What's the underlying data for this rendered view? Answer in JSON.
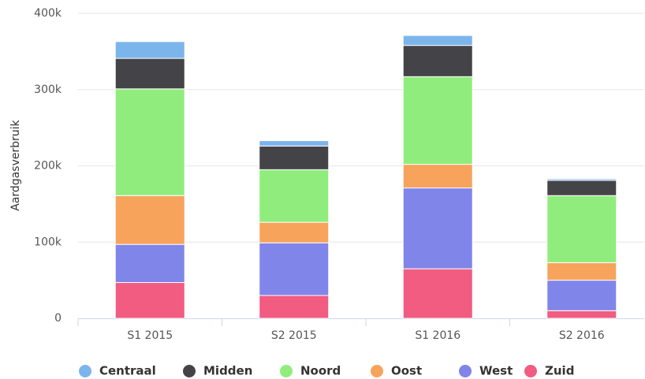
{
  "chart_data": {
    "type": "stacked_bar",
    "y_label": "Aardgasverbruik",
    "categories": [
      "S1 2015",
      "S2 2015",
      "S1 2016",
      "S2 2016"
    ],
    "series": [
      {
        "name": "Zuid",
        "color": "#f15c80",
        "values": [
          47000,
          30000,
          65000,
          10000
        ]
      },
      {
        "name": "West",
        "color": "#8085e9",
        "values": [
          50000,
          69000,
          106000,
          40000
        ]
      },
      {
        "name": "Oost",
        "color": "#f7a35c",
        "values": [
          64000,
          27000,
          31000,
          23000
        ]
      },
      {
        "name": "Noord",
        "color": "#90ed7d",
        "values": [
          140000,
          69000,
          115000,
          88000
        ]
      },
      {
        "name": "Midden",
        "color": "#434348",
        "values": [
          40000,
          31000,
          41000,
          20000
        ]
      },
      {
        "name": "Centraal",
        "color": "#7cb5ec",
        "values": [
          22000,
          7000,
          13000,
          2000
        ]
      }
    ],
    "legend_order": [
      "Centraal",
      "Midden",
      "Noord",
      "Oost",
      "West",
      "Zuid"
    ],
    "ylim": [
      0,
      400000
    ],
    "yticks": [
      0,
      {
        "value": 100000,
        "label": "100k"
      },
      {
        "value": 200000,
        "label": "200k"
      },
      {
        "value": 300000,
        "label": "300k"
      },
      {
        "value": 400000,
        "label": "400k"
      }
    ],
    "grid": true
  }
}
